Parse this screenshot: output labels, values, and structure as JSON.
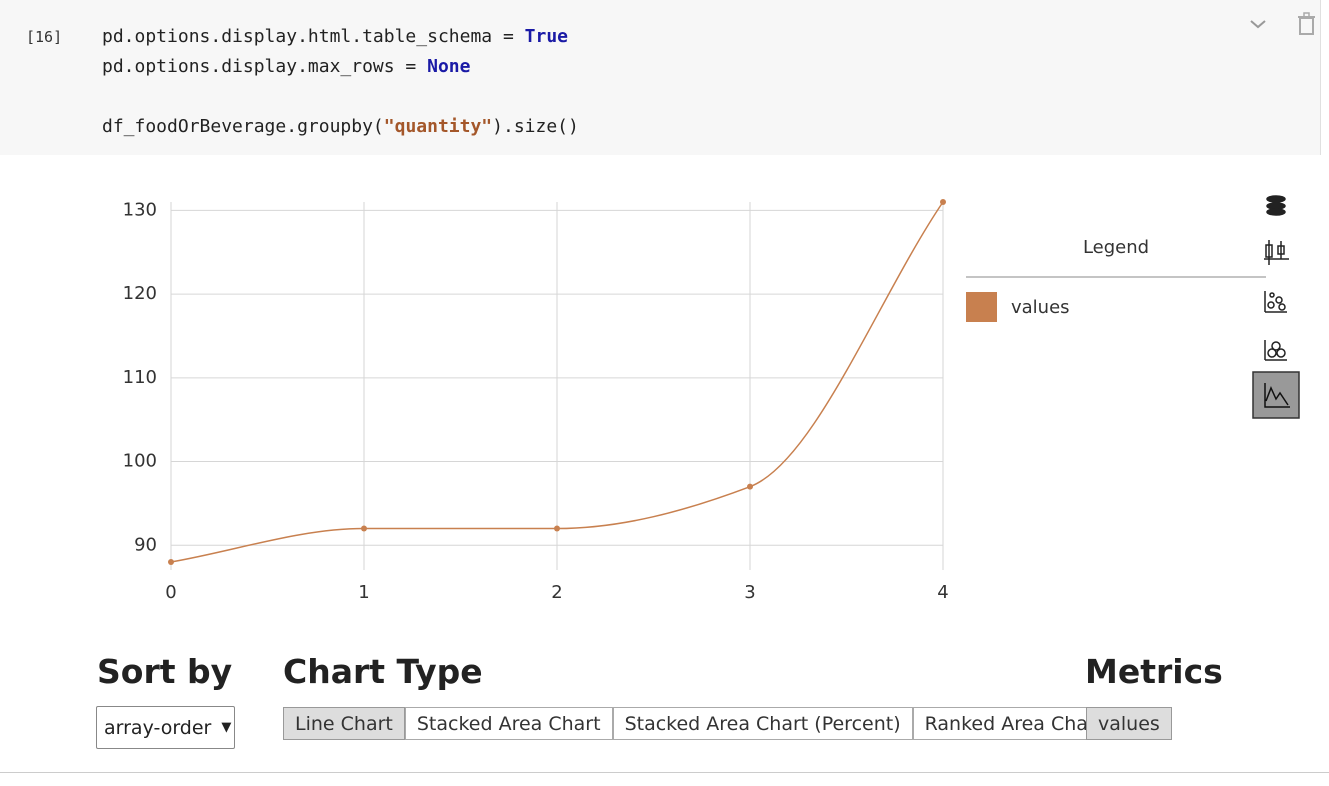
{
  "cell": {
    "prompt": "[16]",
    "code": [
      [
        {
          "text": "pd.options.display.html.table_schema = "
        },
        {
          "text": "True",
          "color": "#1a1aa6"
        }
      ],
      [
        {
          "text": "pd.options.display.max_rows = "
        },
        {
          "text": "None",
          "color": "#1a1aa6"
        }
      ],
      [
        {
          "text": "df_foodOrBeverage.groupby("
        },
        {
          "text": "\"quantity\"",
          "color": "#a4572a"
        },
        {
          "text": ").size()"
        }
      ]
    ]
  },
  "chart_data": {
    "type": "line",
    "x": [
      0,
      1,
      2,
      3,
      4
    ],
    "series": [
      {
        "name": "values",
        "color": "#c8804f",
        "values": [
          88,
          92,
          92,
          97,
          131
        ]
      }
    ],
    "xlim": [
      0,
      4
    ],
    "ylim": [
      88,
      131
    ],
    "xticks": [
      0,
      1,
      2,
      3,
      4
    ],
    "yticks": [
      90,
      100,
      110,
      120,
      130
    ],
    "grid": true,
    "legend_title": "Legend",
    "legend": "right"
  },
  "controls": {
    "sort_label": "Sort by",
    "sort_value": "array-order",
    "chart_type_label": "Chart Type",
    "chart_types": [
      "Line Chart",
      "Stacked Area Chart",
      "Stacked Area Chart (Percent)",
      "Ranked Area Chart"
    ],
    "metrics_label": "Metrics",
    "metrics": [
      "values"
    ]
  }
}
